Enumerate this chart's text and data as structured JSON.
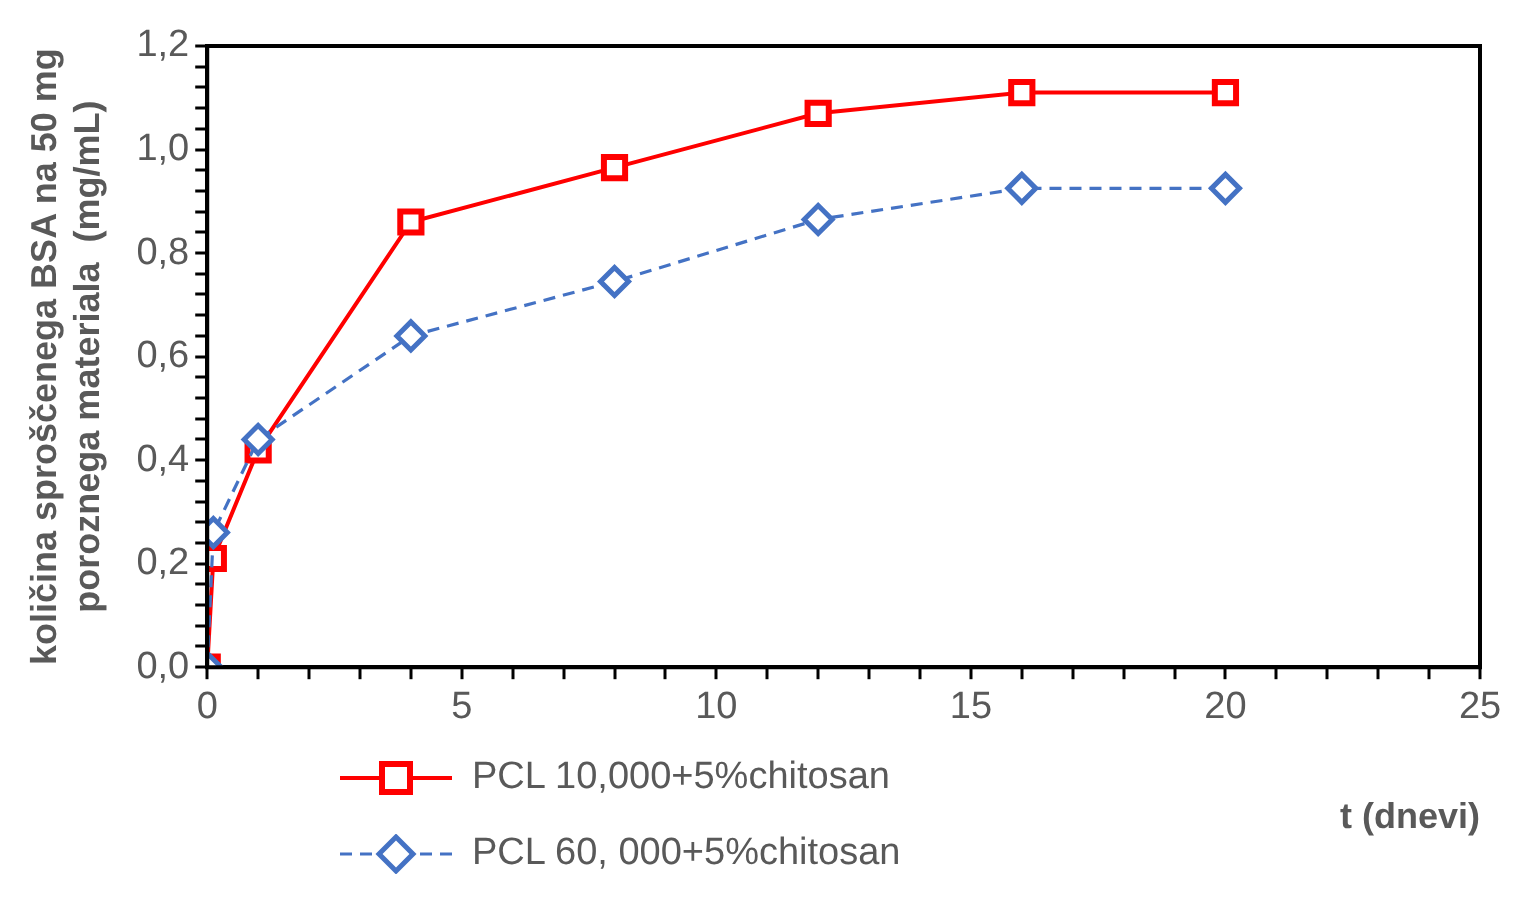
{
  "chart_data": {
    "type": "line",
    "xlabel": "t (dnevi)",
    "ylabel": "količina sproščenega BSA na 50 mg\nporoznega materiala  (mg/mL)",
    "xlim": [
      0,
      25
    ],
    "ylim": [
      0,
      1.2
    ],
    "xticks": [
      0,
      {
        "value": 1,
        "label": null
      },
      {
        "value": 2,
        "label": null
      },
      {
        "value": 3,
        "label": null
      },
      {
        "value": 4,
        "label": null
      },
      5,
      {
        "value": 6,
        "label": null
      },
      {
        "value": 7,
        "label": null
      },
      {
        "value": 8,
        "label": null
      },
      {
        "value": 9,
        "label": null
      },
      10,
      {
        "value": 11,
        "label": null
      },
      {
        "value": 12,
        "label": null
      },
      {
        "value": 13,
        "label": null
      },
      {
        "value": 14,
        "label": null
      },
      15,
      {
        "value": 16,
        "label": null
      },
      {
        "value": 17,
        "label": null
      },
      {
        "value": 18,
        "label": null
      },
      {
        "value": 19,
        "label": null
      },
      20,
      {
        "value": 21,
        "label": null
      },
      {
        "value": 22,
        "label": null
      },
      {
        "value": 23,
        "label": null
      },
      {
        "value": 24,
        "label": null
      },
      25
    ],
    "yticks": [
      {
        "value": 0,
        "label": "0,0"
      },
      {
        "value": 0.04,
        "label": null
      },
      {
        "value": 0.08,
        "label": null
      },
      {
        "value": 0.12,
        "label": null
      },
      {
        "value": 0.16,
        "label": null
      },
      {
        "value": 0.2,
        "label": "0,2"
      },
      {
        "value": 0.24,
        "label": null
      },
      {
        "value": 0.28,
        "label": null
      },
      {
        "value": 0.32,
        "label": null
      },
      {
        "value": 0.36,
        "label": null
      },
      {
        "value": 0.4,
        "label": "0,4"
      },
      {
        "value": 0.44,
        "label": null
      },
      {
        "value": 0.48,
        "label": null
      },
      {
        "value": 0.52,
        "label": null
      },
      {
        "value": 0.56,
        "label": null
      },
      {
        "value": 0.6,
        "label": "0,6"
      },
      {
        "value": 0.64,
        "label": null
      },
      {
        "value": 0.68,
        "label": null
      },
      {
        "value": 0.72,
        "label": null
      },
      {
        "value": 0.76,
        "label": null
      },
      {
        "value": 0.8,
        "label": "0,8"
      },
      {
        "value": 0.84,
        "label": null
      },
      {
        "value": 0.88,
        "label": null
      },
      {
        "value": 0.92,
        "label": null
      },
      {
        "value": 0.96,
        "label": null
      },
      {
        "value": 1.0,
        "label": "1,0"
      },
      {
        "value": 1.04,
        "label": null
      },
      {
        "value": 1.08,
        "label": null
      },
      {
        "value": 1.12,
        "label": null
      },
      {
        "value": 1.16,
        "label": null
      },
      {
        "value": 1.2,
        "label": "1,2"
      }
    ],
    "grid": false,
    "legend": "bottom left",
    "series": [
      {
        "name": "PCL 10,000+5%chitosan",
        "color": "#ff0000",
        "marker": "square",
        "line_style": "solid",
        "x": [
          0,
          0.12,
          1,
          4,
          8,
          12,
          16,
          20
        ],
        "values": [
          0,
          0.21,
          0.42,
          0.86,
          0.965,
          1.07,
          1.11,
          1.11
        ]
      },
      {
        "name": "PCL 60, 000+5%chitosan",
        "color": "#4472c4",
        "marker": "diamond",
        "line_style": "dashed",
        "x": [
          0,
          0.12,
          1,
          4,
          8,
          12,
          16,
          20
        ],
        "values": [
          0,
          0.26,
          0.44,
          0.64,
          0.745,
          0.865,
          0.925,
          0.925
        ]
      }
    ]
  }
}
